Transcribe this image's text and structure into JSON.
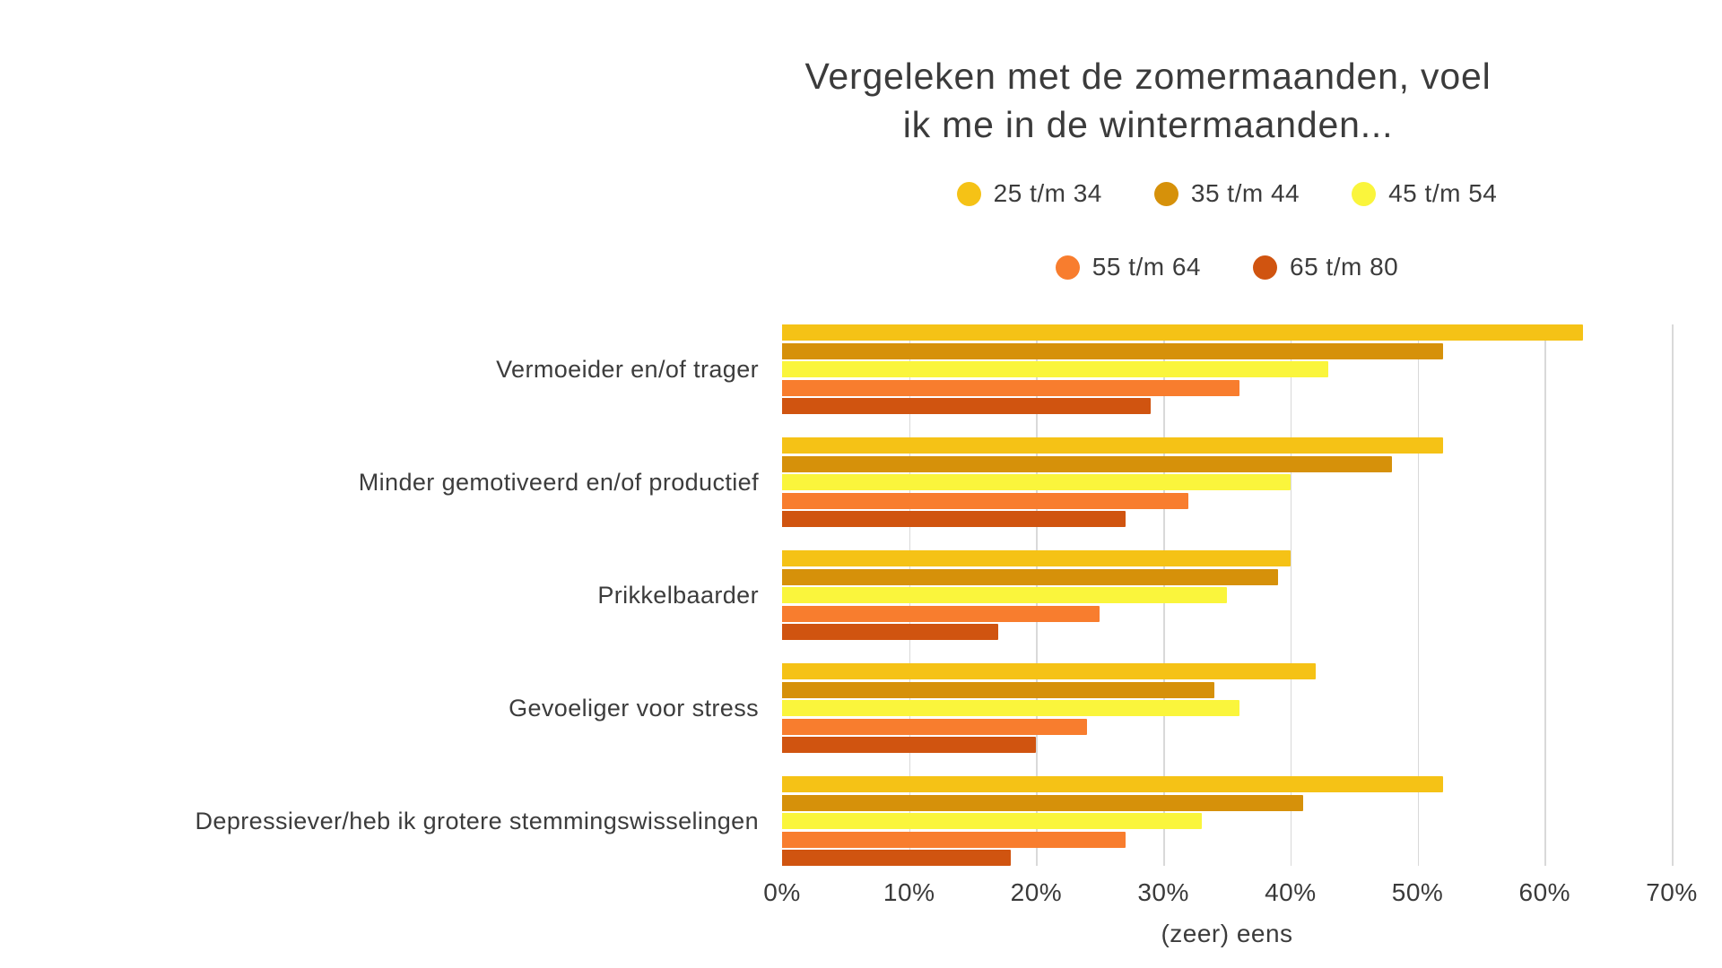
{
  "title": {
    "line1": "Vergeleken met de zomermaanden, voel",
    "line2": "ik me in de wintermaanden..."
  },
  "legend_rows": [
    3,
    2
  ],
  "colors": {
    "background": "#ffffff",
    "gridline": "#d9d9d9",
    "text": "#3c3c3c"
  },
  "chart_data": {
    "type": "bar",
    "orientation": "horizontal",
    "title": "Vergeleken met de zomermaanden, voel ik me in de wintermaanden...",
    "xlabel": "(zeer) eens",
    "ylabel": "",
    "xlim": [
      0,
      70
    ],
    "x_ticks": [
      "0%",
      "10%",
      "20%",
      "30%",
      "40%",
      "50%",
      "60%",
      "70%"
    ],
    "x_tick_values": [
      0,
      10,
      20,
      30,
      40,
      50,
      60,
      70
    ],
    "grid": "vertical",
    "legend_position": "top",
    "categories": [
      "Vermoeider en/of trager",
      "Minder gemotiveerd en/of productief",
      "Prikkelbaarder",
      "Gevoeliger voor stress",
      "Depressiever/heb ik grotere stemmingswisselingen"
    ],
    "series": [
      {
        "name": "25 t/m 34",
        "color": "#F5C216",
        "values": [
          63,
          52,
          40,
          42,
          52
        ]
      },
      {
        "name": "35 t/m 44",
        "color": "#D6910A",
        "values": [
          52,
          48,
          39,
          34,
          41
        ]
      },
      {
        "name": "45 t/m 54",
        "color": "#FAF53C",
        "values": [
          43,
          40,
          35,
          36,
          33
        ]
      },
      {
        "name": "55 t/m 64",
        "color": "#F87D2E",
        "values": [
          36,
          32,
          25,
          24,
          27
        ]
      },
      {
        "name": "65 t/m 80",
        "color": "#D05410",
        "values": [
          29,
          27,
          17,
          20,
          18
        ]
      }
    ]
  }
}
